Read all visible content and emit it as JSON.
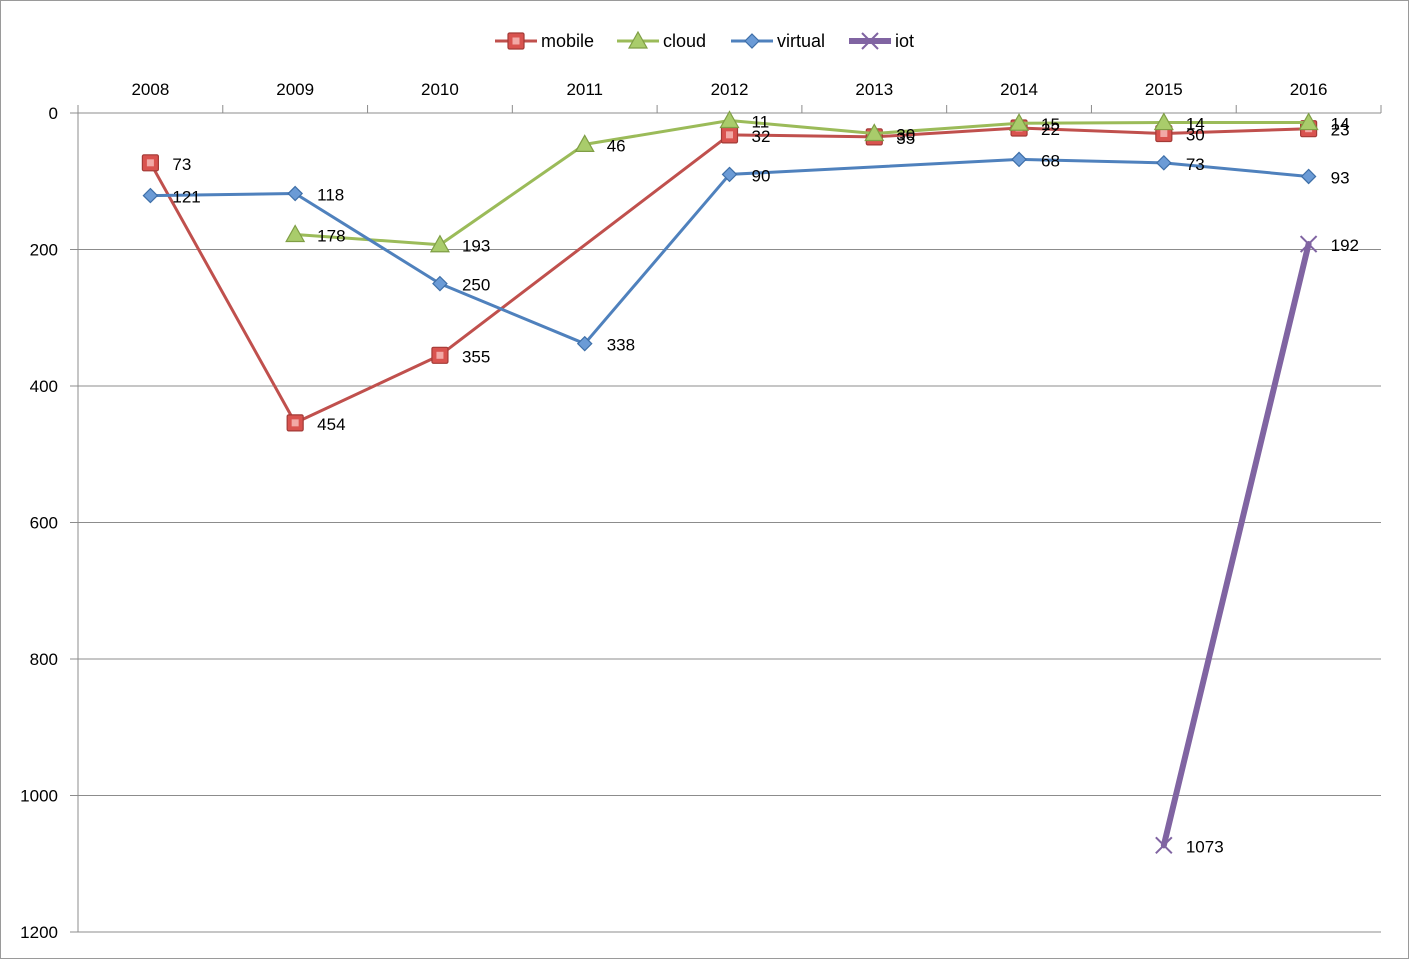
{
  "chart_data": {
    "type": "line",
    "title": "",
    "xlabel": "",
    "ylabel": "",
    "categories": [
      "2008",
      "2009",
      "2010",
      "2011",
      "2012",
      "2013",
      "2014",
      "2015",
      "2016"
    ],
    "y_axis": {
      "reversed": true,
      "min": 0,
      "max": 1200,
      "ticks": [
        0,
        200,
        400,
        600,
        800,
        1000,
        1200
      ]
    },
    "x_axis_position": "top",
    "grid": "horizontal",
    "legend_position": "top",
    "series": [
      {
        "name": "mobile",
        "color": "#c0504d",
        "marker": "square",
        "values": [
          73,
          454,
          355,
          null,
          32,
          35,
          22,
          30,
          23
        ]
      },
      {
        "name": "cloud",
        "color": "#9bbb59",
        "marker": "triangle",
        "values": [
          null,
          178,
          193,
          46,
          11,
          30,
          15,
          14,
          14
        ]
      },
      {
        "name": "virtual",
        "color": "#4f81bd",
        "marker": "diamond",
        "values": [
          121,
          118,
          250,
          338,
          90,
          null,
          68,
          73,
          93
        ]
      },
      {
        "name": "iot",
        "color": "#8064a2",
        "marker": "x",
        "values": [
          null,
          null,
          null,
          null,
          null,
          null,
          null,
          1073,
          192
        ]
      }
    ]
  }
}
